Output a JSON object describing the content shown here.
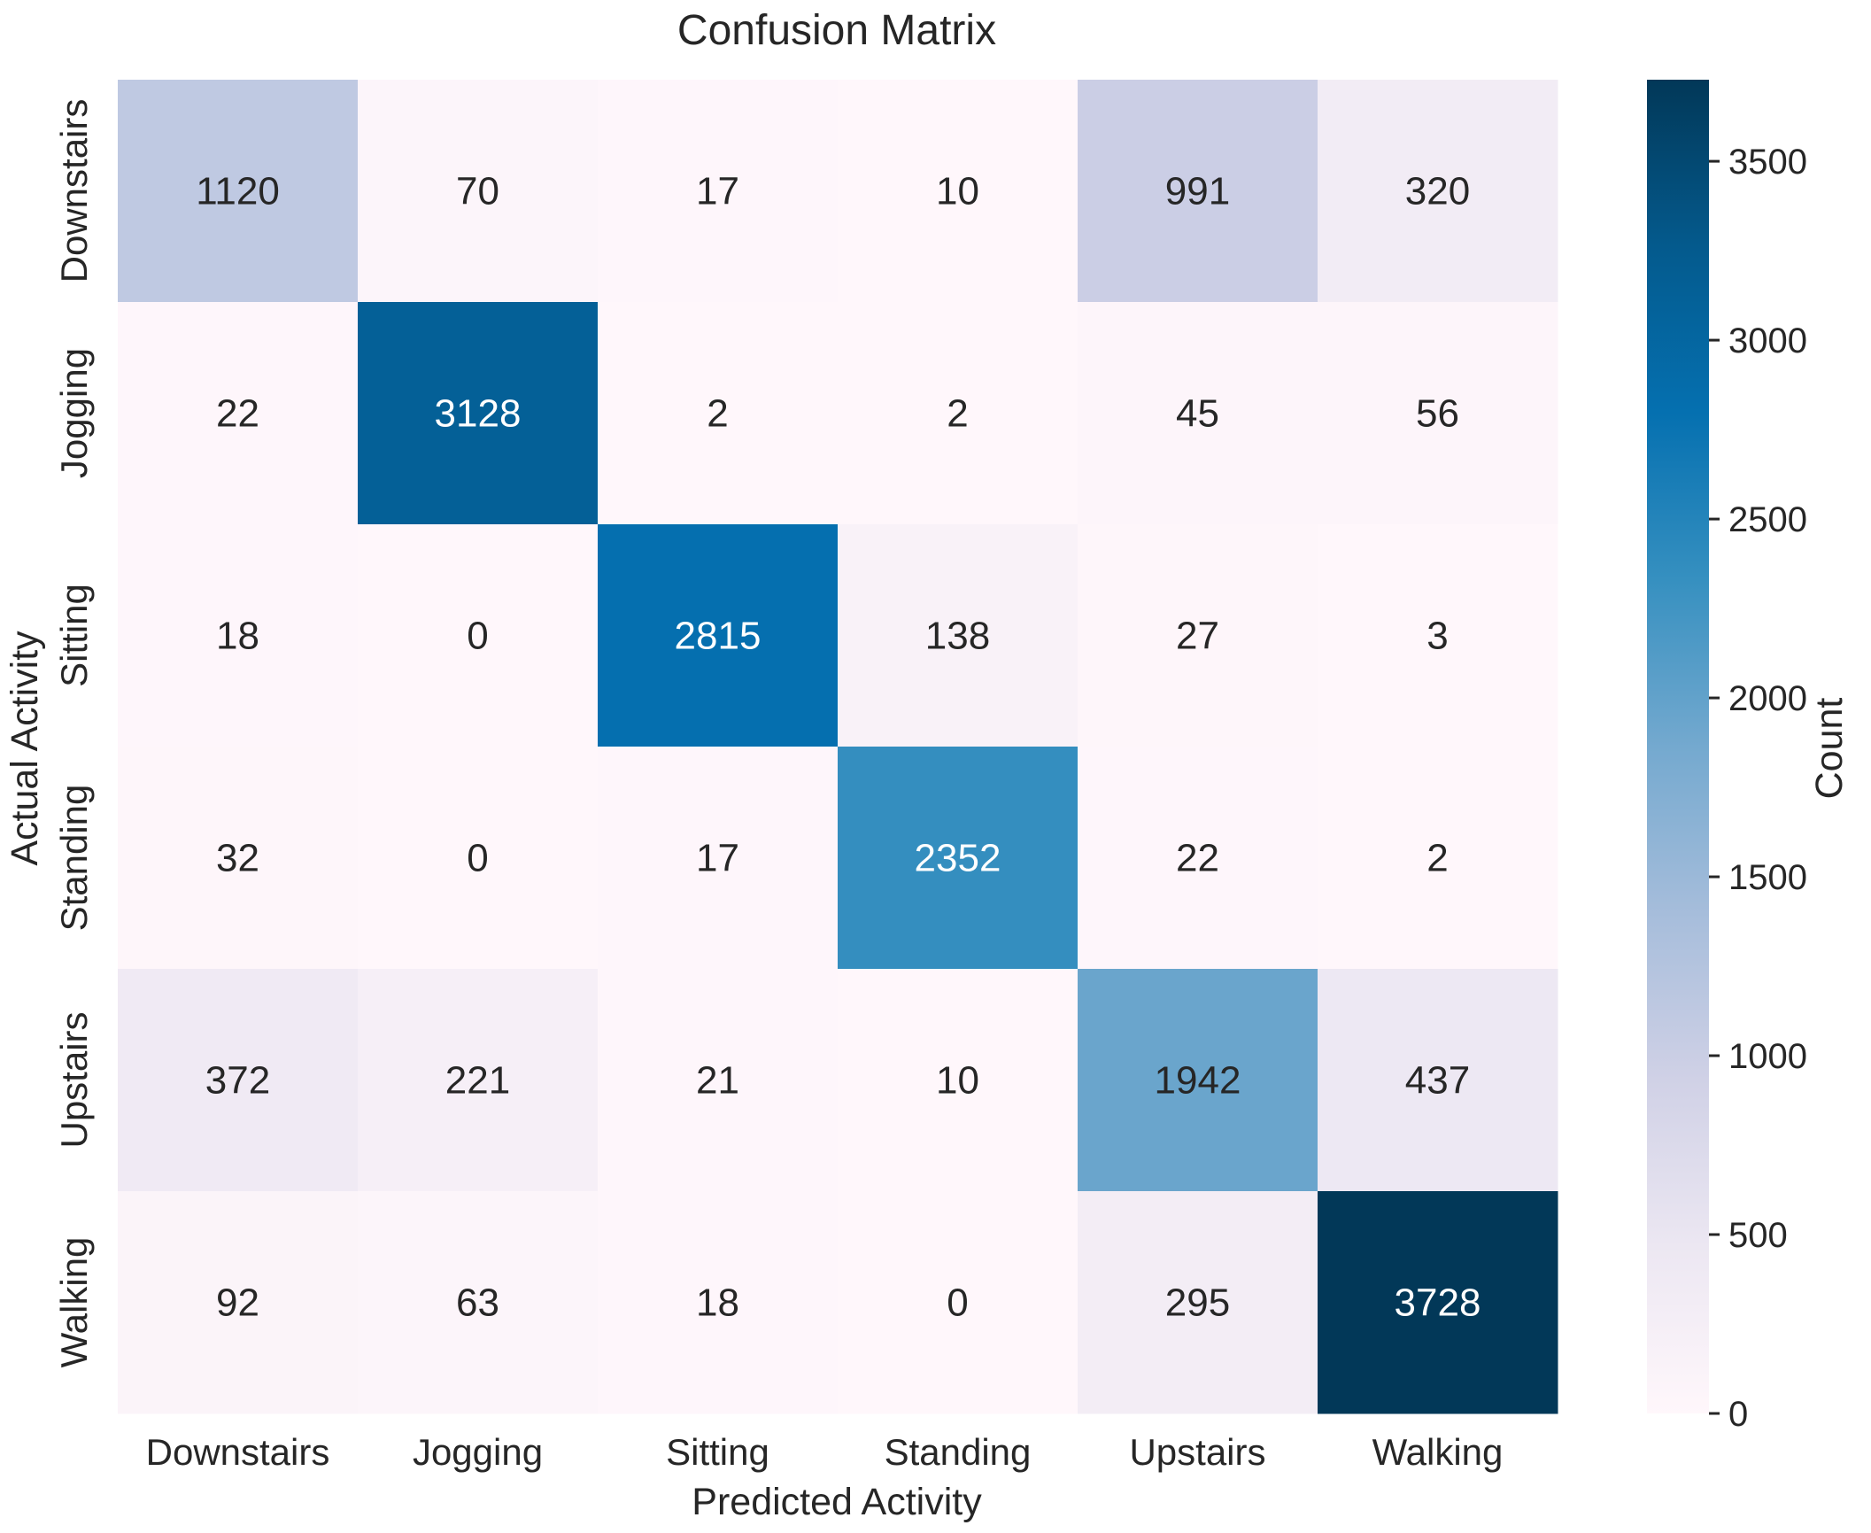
{
  "chart_data": {
    "type": "heatmap",
    "title": "Confusion Matrix",
    "xlabel": "Predicted Activity",
    "ylabel": "Actual Activity",
    "x_categories": [
      "Downstairs",
      "Jogging",
      "Sitting",
      "Standing",
      "Upstairs",
      "Walking"
    ],
    "y_categories": [
      "Downstairs",
      "Jogging",
      "Sitting",
      "Standing",
      "Upstairs",
      "Walking"
    ],
    "values": [
      [
        1120,
        70,
        17,
        10,
        991,
        320
      ],
      [
        22,
        3128,
        2,
        2,
        45,
        56
      ],
      [
        18,
        0,
        2815,
        138,
        27,
        3
      ],
      [
        32,
        0,
        17,
        2352,
        22,
        2
      ],
      [
        372,
        221,
        21,
        10,
        1942,
        437
      ],
      [
        92,
        63,
        18,
        0,
        295,
        3728
      ]
    ],
    "colorbar": {
      "label": "Count",
      "range": [
        0,
        3728
      ],
      "ticks": [
        0,
        500,
        1000,
        1500,
        2000,
        2500,
        3000,
        3500
      ]
    },
    "colormap": "PuBu",
    "colormap_stops": [
      "#fff7fb",
      "#ece7f2",
      "#d0d1e6",
      "#a6bddb",
      "#74a9cf",
      "#3690c0",
      "#0570b0",
      "#045a8d",
      "#023858"
    ],
    "grid": false
  }
}
